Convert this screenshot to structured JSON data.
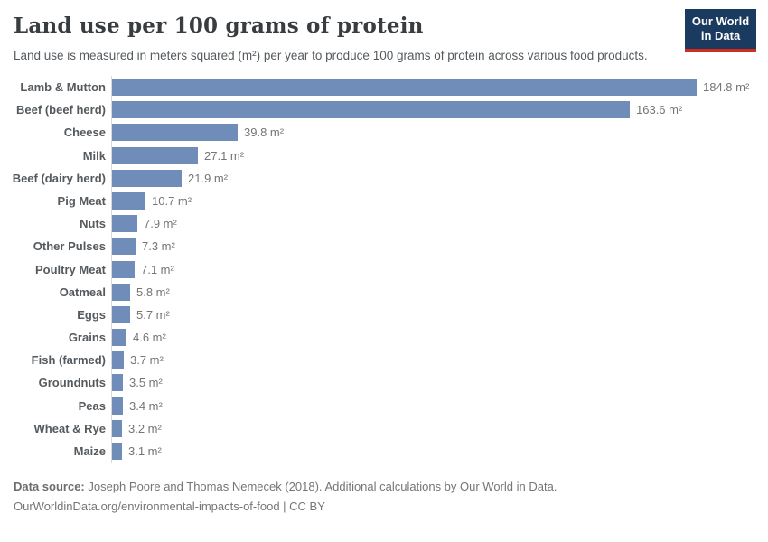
{
  "header": {
    "title": "Land use per 100 grams of protein",
    "subtitle": "Land use is measured in meters squared (m²) per year to produce 100 grams of protein across various food products.",
    "logo": {
      "line1": "Our World",
      "line2": "in Data",
      "bg_color": "#1b3a5f",
      "stripe_color": "#cf2e1f"
    }
  },
  "chart_data": {
    "type": "bar",
    "orientation": "horizontal",
    "title": "Land use per 100 grams of protein",
    "xlabel": "",
    "ylabel": "",
    "unit": "m²",
    "xlim": [
      0,
      185
    ],
    "grid": false,
    "legend": false,
    "bar_color": "#708cb8",
    "axis_line_color": "#d9d9d9",
    "categories": [
      "Lamb & Mutton",
      "Beef (beef herd)",
      "Cheese",
      "Milk",
      "Beef (dairy herd)",
      "Pig Meat",
      "Nuts",
      "Other Pulses",
      "Poultry Meat",
      "Oatmeal",
      "Eggs",
      "Grains",
      "Fish (farmed)",
      "Groundnuts",
      "Peas",
      "Wheat & Rye",
      "Maize"
    ],
    "values": [
      184.8,
      163.6,
      39.8,
      27.1,
      21.9,
      10.7,
      7.9,
      7.3,
      7.1,
      5.8,
      5.7,
      4.6,
      3.7,
      3.5,
      3.4,
      3.2,
      3.1
    ],
    "value_labels": [
      "184.8 m²",
      "163.6 m²",
      "39.8 m²",
      "27.1 m²",
      "21.9 m²",
      "10.7 m²",
      "7.9 m²",
      "7.3 m²",
      "7.1 m²",
      "5.8 m²",
      "5.7 m²",
      "4.6 m²",
      "3.7 m²",
      "3.5 m²",
      "3.4 m²",
      "3.2 m²",
      "3.1 m²"
    ]
  },
  "footer": {
    "source_label": "Data source:",
    "source_text": " Joseph Poore and Thomas Nemecek (2018). Additional calculations by Our World in Data.",
    "link_text": "OurWorldinData.org/environmental-impacts-of-food | CC BY"
  }
}
